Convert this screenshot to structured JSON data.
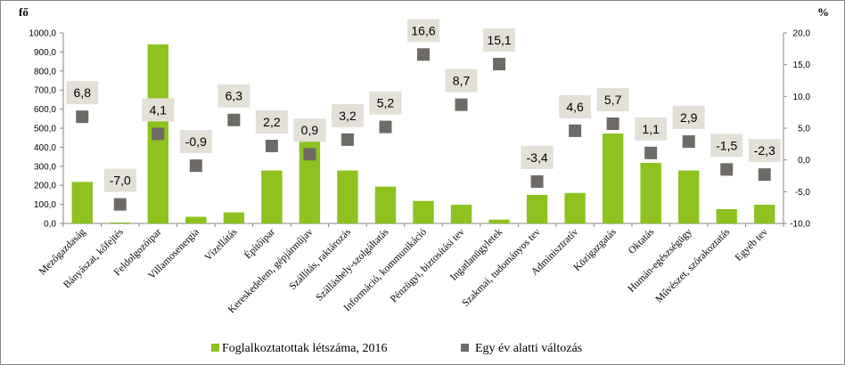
{
  "chart_data": {
    "type": "bar+scatter",
    "y_left_unit": "fő",
    "y_right_unit": "%",
    "y_left_ticks": [
      "0,0",
      "100,0",
      "200,0",
      "300,0",
      "400,0",
      "500,0",
      "600,0",
      "700,0",
      "800,0",
      "900,0",
      "1000,0"
    ],
    "y_right_ticks": [
      "-10,0",
      "-5,0",
      "0,0",
      "5,0",
      "10,0",
      "15,0",
      "20,0"
    ],
    "ylim_left": [
      0,
      1000
    ],
    "ylim_right": [
      -10,
      20
    ],
    "categories": [
      "Mezőgazdaság",
      "Bányászat, kőfejtés",
      "Feldolgozóipar",
      "Villamosenergia",
      "Vízellátás",
      "Építőipar",
      "Kereskedelem, gépjárműjav",
      "Szállítás, raktározás",
      "Szálláshely-szolgáltatás",
      "Információ, kommunikáció",
      "Pénzügyi, biztosítási tev",
      "Ingatlanügyletek",
      "Szakmai, tudományos tev",
      "Adminisztratív",
      "Közigazgatás",
      "Oktatás",
      "Humán-egészségügy",
      "Művészet, szórakoztatás",
      "Egyéb tev"
    ],
    "series": [
      {
        "name": "Foglalkoztatottak létszáma, 2016",
        "kind": "bar",
        "axis": "left",
        "color": "#8dc21f",
        "values": [
          218,
          5,
          940,
          35,
          58,
          278,
          430,
          278,
          193,
          118,
          98,
          20,
          150,
          160,
          472,
          318,
          278,
          75,
          98
        ]
      },
      {
        "name": "Egy év alatti változás",
        "kind": "scatter",
        "axis": "right",
        "color": "#6e6a66",
        "values": [
          6.8,
          -7.0,
          4.1,
          -0.9,
          6.3,
          2.2,
          0.9,
          3.2,
          5.2,
          16.6,
          8.7,
          15.1,
          -3.4,
          4.6,
          5.7,
          1.1,
          2.9,
          -1.5,
          -2.3
        ],
        "labels": [
          "6,8",
          "-7,0",
          "4,1",
          "-0,9",
          "6,3",
          "2,2",
          "0,9",
          "3,2",
          "5,2",
          "16,6",
          "8,7",
          "15,1",
          "-3,4",
          "4,6",
          "5,7",
          "1,1",
          "2,9",
          "-1,5",
          "-2,3"
        ]
      }
    ],
    "label_box_color": "#e3e0d8",
    "legend_position": "bottom",
    "grid": false
  }
}
